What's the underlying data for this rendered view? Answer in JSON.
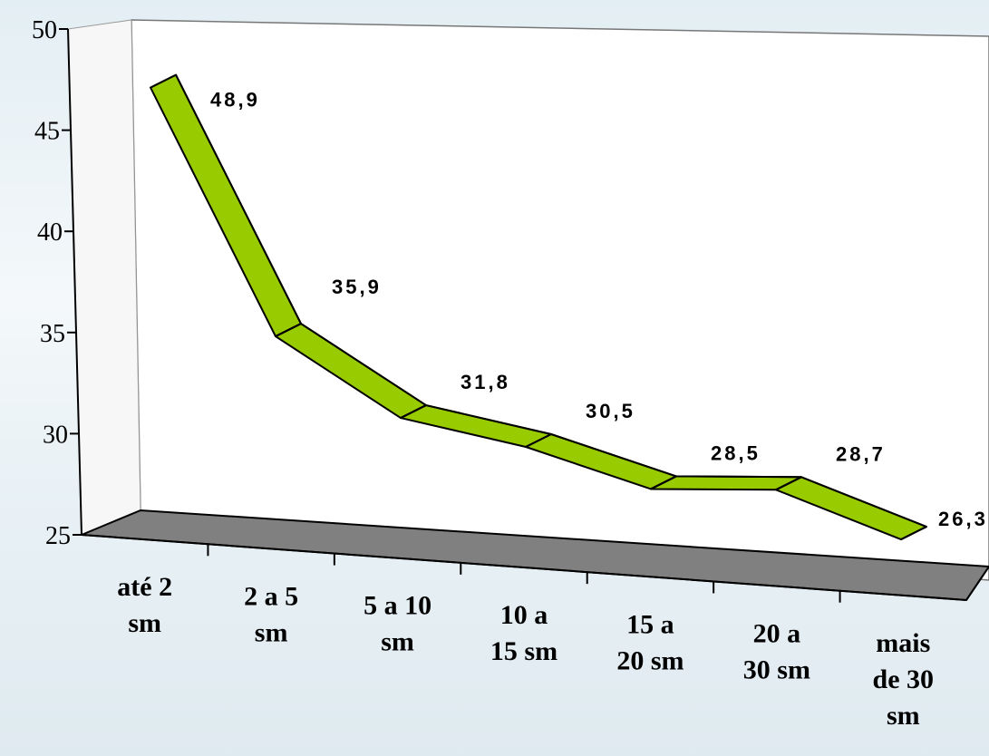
{
  "chart_data": {
    "type": "line",
    "title": "",
    "xlabel": "",
    "ylabel": "",
    "categories": [
      [
        "até 2",
        "sm"
      ],
      [
        "2 a 5",
        "sm"
      ],
      [
        "5 a 10",
        "sm"
      ],
      [
        "10 a",
        "15 sm"
      ],
      [
        "15 a",
        "20 sm"
      ],
      [
        "20 a",
        "30 sm"
      ],
      [
        "mais",
        "de 30",
        "sm"
      ]
    ],
    "values": [
      48.9,
      35.9,
      31.8,
      30.5,
      28.5,
      28.7,
      26.3
    ],
    "data_labels": [
      "48,9",
      "35,9",
      "31,8",
      "30,5",
      "28,5",
      "28,7",
      "26,3"
    ],
    "yticks": [
      "50",
      "45",
      "40",
      "35",
      "30",
      "25"
    ],
    "ylim": [
      25,
      50
    ],
    "grid": false,
    "legend": "none",
    "style": "3d-ribbon",
    "colors": {
      "series_fill": "#99cc00",
      "series_side": "#6f9a00",
      "floor": "#808080",
      "plot_wall": "#ffffff",
      "axis": "#000000"
    }
  }
}
